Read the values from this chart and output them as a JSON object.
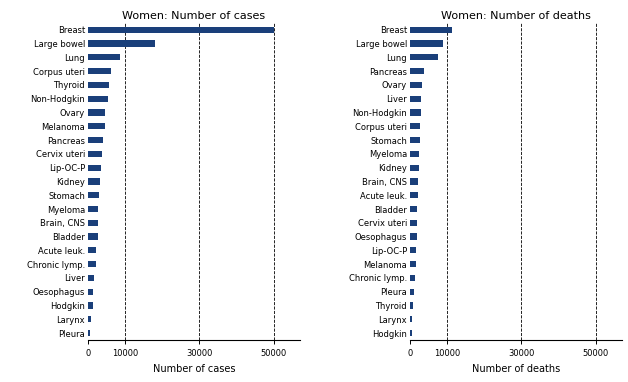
{
  "incidence_labels": [
    "Breast",
    "Large bowel",
    "Lung",
    "Corpus uteri",
    "Thyroid",
    "Non-Hodgkin",
    "Ovary",
    "Melanoma",
    "Pancreas",
    "Cervix uteri",
    "Lip-OC-P",
    "Kidney",
    "Stomach",
    "Myeloma",
    "Brain, CNS",
    "Bladder",
    "Acute leuk.",
    "Chronic lymp.",
    "Liver",
    "Oesophagus",
    "Hodgkin",
    "Larynx",
    "Pleura"
  ],
  "incidence_values": [
    50000,
    18000,
    8500,
    6200,
    5800,
    5500,
    4600,
    4500,
    4100,
    3900,
    3500,
    3200,
    3000,
    2800,
    2700,
    2600,
    2300,
    2100,
    1700,
    1500,
    1300,
    850,
    650
  ],
  "mortality_labels": [
    "Breast",
    "Large bowel",
    "Lung",
    "Pancreas",
    "Ovary",
    "Liver",
    "Non-Hodgkin",
    "Corpus uteri",
    "Stomach",
    "Myeloma",
    "Kidney",
    "Brain, CNS",
    "Acute leuk.",
    "Bladder",
    "Cervix uteri",
    "Oesophagus",
    "Lip-OC-P",
    "Melanoma",
    "Chronic lymp.",
    "Pleura",
    "Thyroid",
    "Larynx",
    "Hodgkin"
  ],
  "mortality_values": [
    11200,
    9000,
    7500,
    3900,
    3300,
    3100,
    2900,
    2700,
    2600,
    2500,
    2350,
    2200,
    2100,
    2000,
    1900,
    1800,
    1650,
    1550,
    1400,
    1200,
    850,
    650,
    450
  ],
  "bar_color": "#1a3f7a",
  "title_left": "Women: Number of cases",
  "title_right": "Women: Number of deaths",
  "xlabel_left": "Number of cases",
  "xlabel_right": "Number of deaths",
  "xlim": [
    0,
    57000
  ],
  "xticks": [
    0,
    10000,
    30000,
    50000
  ],
  "xticklabels": [
    "0",
    "10000",
    "30000",
    "50000"
  ],
  "label_fontsize": 6.0,
  "title_fontsize": 8.0,
  "xlabel_fontsize": 7.0,
  "bar_height": 0.45
}
